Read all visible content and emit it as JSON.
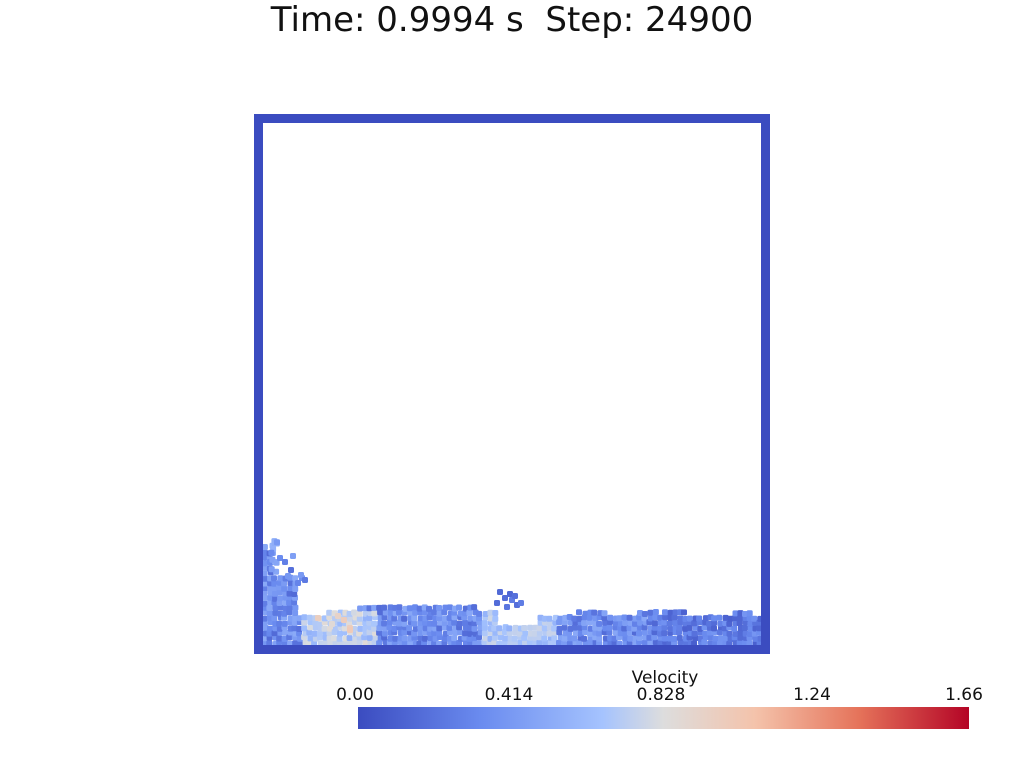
{
  "header": {
    "time_label": "Time: 0.9994 s",
    "step_label": "Step: 24900"
  },
  "colorbar": {
    "title": "Velocity",
    "ticks": [
      "0.00",
      "0.414",
      "0.828",
      "1.24",
      "1.66"
    ],
    "range": [
      0.0,
      1.66
    ],
    "colormap": "coolwarm",
    "colors": [
      "#3b4cc0",
      "#6a8bef",
      "#a5c3fe",
      "#dddddd",
      "#f4c3ab",
      "#e5735a",
      "#b40426"
    ]
  },
  "scene": {
    "container_color": "#3b4cc0"
  }
}
